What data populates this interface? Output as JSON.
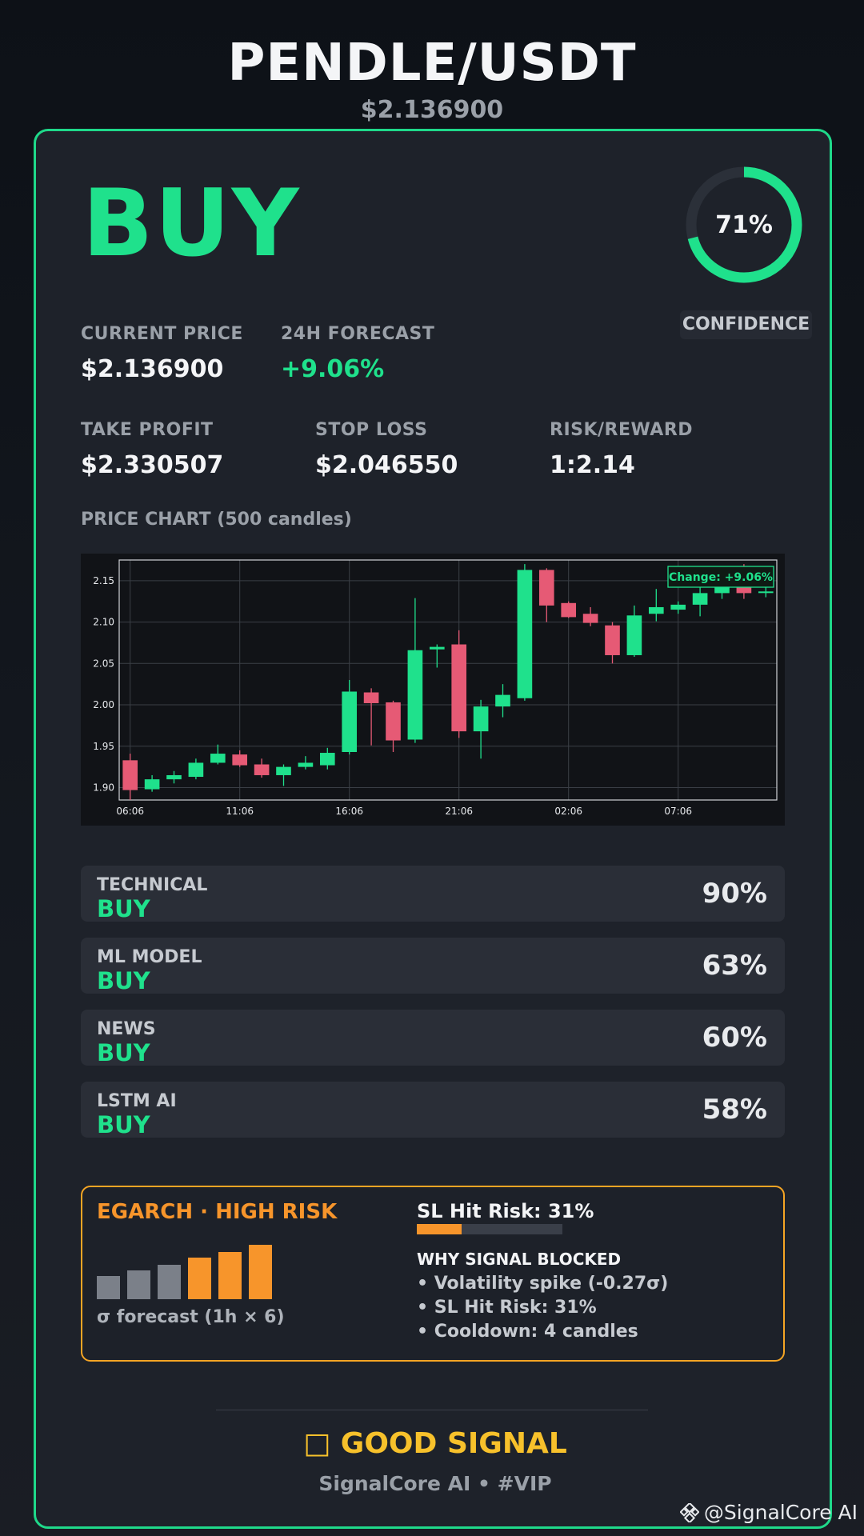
{
  "header": {
    "pair": "PENDLE/USDT",
    "price": "$2.136900"
  },
  "signal": {
    "action": "BUY",
    "confidence_pct": 71,
    "confidence_text": "71%",
    "confidence_label": "CONFIDENCE"
  },
  "stats": {
    "current_price": {
      "label": "CURRENT PRICE",
      "value": "$2.136900"
    },
    "forecast_24h": {
      "label": "24H FORECAST",
      "value": "+9.06%"
    },
    "take_profit": {
      "label": "TAKE PROFIT",
      "value": "$2.330507"
    },
    "stop_loss": {
      "label": "STOP LOSS",
      "value": "$2.046550"
    },
    "risk_reward": {
      "label": "RISK/REWARD",
      "value": "1:2.14"
    }
  },
  "chart_section": {
    "label": "PRICE CHART (500 candles)"
  },
  "chart_data": {
    "type": "candlestick",
    "xticks": [
      "06:06",
      "11:06",
      "16:06",
      "21:06",
      "02:06",
      "07:06"
    ],
    "yticks": [
      1.9,
      1.95,
      2.0,
      2.05,
      2.1,
      2.15
    ],
    "ylim": [
      1.885,
      2.175
    ],
    "annotation": "Change: +9.06%",
    "grid": true,
    "candles": [
      {
        "o": 1.933,
        "h": 1.941,
        "l": 1.885,
        "c": 1.897
      },
      {
        "o": 1.898,
        "h": 1.915,
        "l": 1.895,
        "c": 1.91
      },
      {
        "o": 1.91,
        "h": 1.92,
        "l": 1.905,
        "c": 1.915
      },
      {
        "o": 1.913,
        "h": 1.935,
        "l": 1.91,
        "c": 1.93
      },
      {
        "o": 1.93,
        "h": 1.952,
        "l": 1.928,
        "c": 1.941
      },
      {
        "o": 1.94,
        "h": 1.945,
        "l": 1.925,
        "c": 1.927
      },
      {
        "o": 1.928,
        "h": 1.935,
        "l": 1.912,
        "c": 1.915
      },
      {
        "o": 1.915,
        "h": 1.928,
        "l": 1.902,
        "c": 1.925
      },
      {
        "o": 1.925,
        "h": 1.938,
        "l": 1.922,
        "c": 1.93
      },
      {
        "o": 1.927,
        "h": 1.948,
        "l": 1.922,
        "c": 1.942
      },
      {
        "o": 1.943,
        "h": 2.03,
        "l": 1.94,
        "c": 2.016
      },
      {
        "o": 2.015,
        "h": 2.02,
        "l": 1.951,
        "c": 2.002
      },
      {
        "o": 2.003,
        "h": 2.005,
        "l": 1.943,
        "c": 1.957
      },
      {
        "o": 1.958,
        "h": 2.129,
        "l": 1.954,
        "c": 2.066
      },
      {
        "o": 2.067,
        "h": 2.073,
        "l": 2.045,
        "c": 2.07
      },
      {
        "o": 2.073,
        "h": 2.09,
        "l": 1.96,
        "c": 1.968
      },
      {
        "o": 1.968,
        "h": 2.006,
        "l": 1.935,
        "c": 1.998
      },
      {
        "o": 1.998,
        "h": 2.025,
        "l": 1.985,
        "c": 2.012
      },
      {
        "o": 2.008,
        "h": 2.17,
        "l": 2.005,
        "c": 2.163
      },
      {
        "o": 2.163,
        "h": 2.165,
        "l": 2.1,
        "c": 2.12
      },
      {
        "o": 2.123,
        "h": 2.125,
        "l": 2.105,
        "c": 2.106
      },
      {
        "o": 2.11,
        "h": 2.118,
        "l": 2.095,
        "c": 2.099
      },
      {
        "o": 2.096,
        "h": 2.1,
        "l": 2.05,
        "c": 2.06
      },
      {
        "o": 2.06,
        "h": 2.12,
        "l": 2.058,
        "c": 2.108
      },
      {
        "o": 2.11,
        "h": 2.14,
        "l": 2.101,
        "c": 2.118
      },
      {
        "o": 2.115,
        "h": 2.125,
        "l": 2.11,
        "c": 2.121
      },
      {
        "o": 2.121,
        "h": 2.145,
        "l": 2.107,
        "c": 2.135
      },
      {
        "o": 2.135,
        "h": 2.148,
        "l": 2.128,
        "c": 2.145
      },
      {
        "o": 2.145,
        "h": 2.17,
        "l": 2.128,
        "c": 2.135
      },
      {
        "o": 2.137,
        "h": 2.145,
        "l": 2.13,
        "c": 2.137
      }
    ]
  },
  "indicators": [
    {
      "name": "TECHNICAL",
      "signal": "BUY",
      "pct": "90%"
    },
    {
      "name": "ML MODEL",
      "signal": "BUY",
      "pct": "63%"
    },
    {
      "name": "NEWS",
      "signal": "BUY",
      "pct": "60%"
    },
    {
      "name": "LSTM AI",
      "signal": "BUY",
      "pct": "58%"
    }
  ],
  "risk": {
    "title": "EGARCH · HIGH RISK",
    "sigma_bars": [
      0.4,
      0.5,
      0.6,
      0.72,
      0.82,
      0.95
    ],
    "sigma_caption": "σ forecast (1h × 6)",
    "sl_title": "SL Hit Risk: 31%",
    "sl_fraction": 0.31,
    "why_title": "WHY SIGNAL BLOCKED",
    "why_items": [
      "• Volatility spike (-0.27σ)",
      "• SL Hit Risk: 31%",
      "• Cooldown: 4 candles"
    ]
  },
  "footer": {
    "verdict_icon": "□",
    "verdict": "GOOD SIGNAL",
    "brand": "SignalCore AI • #VIP",
    "watermark": "@SignalCore AI"
  },
  "colors": {
    "bull": "#1fe18c",
    "bear": "#e65a75",
    "accent_border": "#1fd98a",
    "risk_orange": "#f7952b",
    "bar_gray": "#7b8089",
    "verdict_yellow": "#f7c12b"
  }
}
